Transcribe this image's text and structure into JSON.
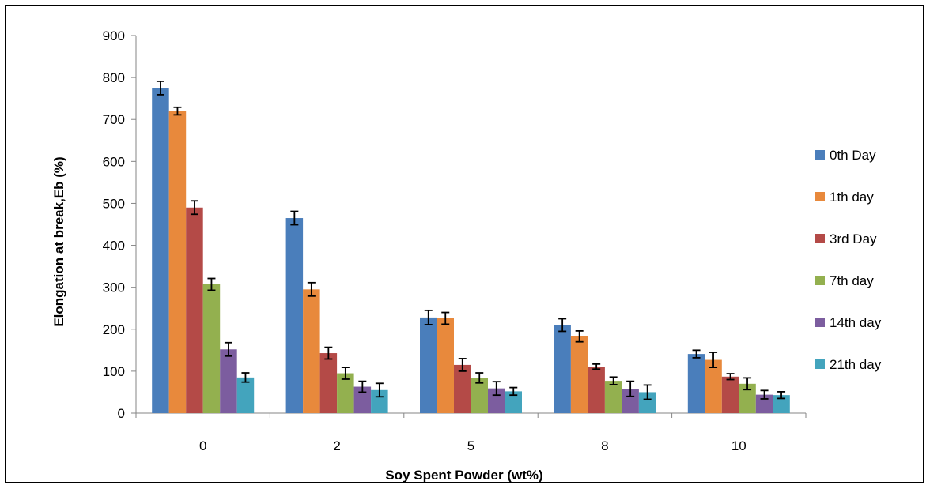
{
  "chart_data": {
    "type": "bar",
    "title": "",
    "xlabel": "Soy Spent Powder (wt%)",
    "ylabel": "Elongation at break,Eb (%)",
    "ylim": [
      0,
      900
    ],
    "yticks": [
      "0",
      "100",
      "200",
      "300",
      "400",
      "500",
      "600",
      "700",
      "800",
      "900"
    ],
    "categories": [
      "0",
      "2",
      "5",
      "8",
      "10"
    ],
    "series": [
      {
        "name": "0th Day",
        "color": "#4a7ebb",
        "values": [
          775,
          465,
          228,
          210,
          141
        ],
        "errors": [
          16,
          16,
          17,
          15,
          9
        ]
      },
      {
        "name": "1th day",
        "color": "#e8893c",
        "values": [
          720,
          295,
          226,
          183,
          127
        ],
        "errors": [
          9,
          16,
          14,
          13,
          18
        ]
      },
      {
        "name": "3rd Day",
        "color": "#b44a47",
        "values": [
          490,
          143,
          115,
          111,
          87
        ],
        "errors": [
          16,
          14,
          15,
          6,
          7
        ]
      },
      {
        "name": "7th day",
        "color": "#93b04f",
        "values": [
          307,
          95,
          84,
          77,
          70
        ],
        "errors": [
          14,
          14,
          12,
          9,
          14
        ]
      },
      {
        "name": "14th day",
        "color": "#7c5d9f",
        "values": [
          152,
          63,
          59,
          58,
          44
        ],
        "errors": [
          16,
          13,
          16,
          18,
          10
        ]
      },
      {
        "name": "21th day",
        "color": "#43a4bd",
        "values": [
          85,
          55,
          52,
          50,
          43
        ],
        "errors": [
          11,
          16,
          9,
          17,
          8
        ]
      }
    ],
    "error_bars": true,
    "grid": false,
    "legend_position": "right"
  }
}
